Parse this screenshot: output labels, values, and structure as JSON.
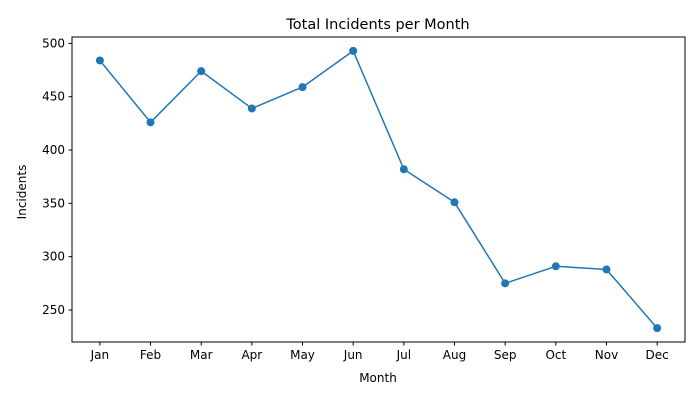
{
  "chart_data": {
    "type": "line",
    "title": "Total Incidents per Month",
    "xlabel": "Month",
    "ylabel": "Incidents",
    "categories": [
      "Jan",
      "Feb",
      "Mar",
      "Apr",
      "May",
      "Jun",
      "Jul",
      "Aug",
      "Sep",
      "Oct",
      "Nov",
      "Dec"
    ],
    "series": [
      {
        "values": [
          484,
          426,
          474,
          439,
          459,
          493,
          382,
          351,
          275,
          291,
          288,
          233
        ],
        "color": "#1f77b4",
        "marker": "circle"
      }
    ],
    "ylim": [
      220,
      506
    ],
    "yticks": [
      250,
      300,
      350,
      400,
      450,
      500
    ],
    "grid": false,
    "legend": "none"
  }
}
